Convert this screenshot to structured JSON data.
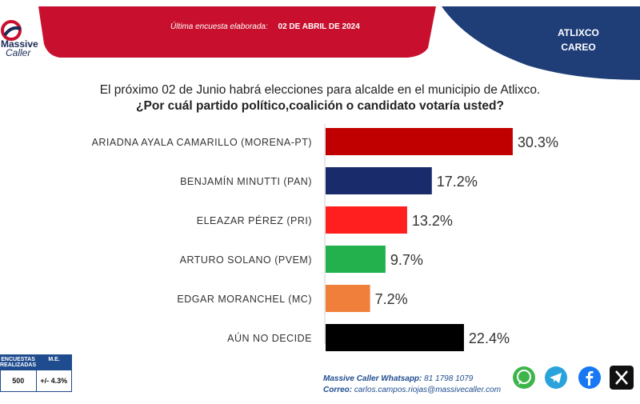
{
  "header": {
    "brand_top": "Massive",
    "brand_bottom": "Caller",
    "last_survey_label": "Última encuesta elaborada:",
    "last_survey_date": "02 DE ABRIL DE 2024",
    "region_line1": "ATLIXCO",
    "region_line2": "CAREO"
  },
  "question": {
    "line1": "El próximo 02 de Junio habrá elecciones para alcalde en el municipio de  Atlixco.",
    "line2": "¿Por cuál partido político,coalición o candidato votaría usted?"
  },
  "chart_data": {
    "type": "bar",
    "orientation": "horizontal",
    "categories": [
      "ARIADNA AYALA CAMARILLO (MORENA-PT)",
      "BENJAMÍN MINUTTI (PAN)",
      "ELEAZAR PÉREZ (PRI)",
      "ARTURO SOLANO (PVEM)",
      "EDGAR MORANCHEL (MC)",
      "AÚN NO DECIDE"
    ],
    "values": [
      30.3,
      17.2,
      13.2,
      9.7,
      7.2,
      22.4
    ],
    "data_labels": [
      "30.3%",
      "17.2%",
      "13.2%",
      "9.7%",
      "7.2%",
      "22.4%"
    ],
    "colors": [
      "#c00000",
      "#1a2b6b",
      "#ff1f1f",
      "#22b14c",
      "#ef7f3a",
      "#000000"
    ],
    "xlim": [
      0,
      100
    ],
    "grid": false
  },
  "info_box": {
    "col1_header": "ENCUESTAS REALIZADAS",
    "col2_header": "M.E.",
    "col1_value": "500",
    "col2_value": "+/- 4.3%"
  },
  "contact": {
    "whatsapp_label": "Massive Caller Whatsapp:",
    "whatsapp_number": "81 1798 1079",
    "email_label": "Correo:",
    "email": "carlos.campos.riojas@massivecaller.com"
  },
  "social_icons": [
    "whatsapp-icon",
    "telegram-icon",
    "facebook-icon",
    "x-icon"
  ],
  "theme": {
    "navy": "#1f3e78",
    "red": "#c8102e"
  }
}
